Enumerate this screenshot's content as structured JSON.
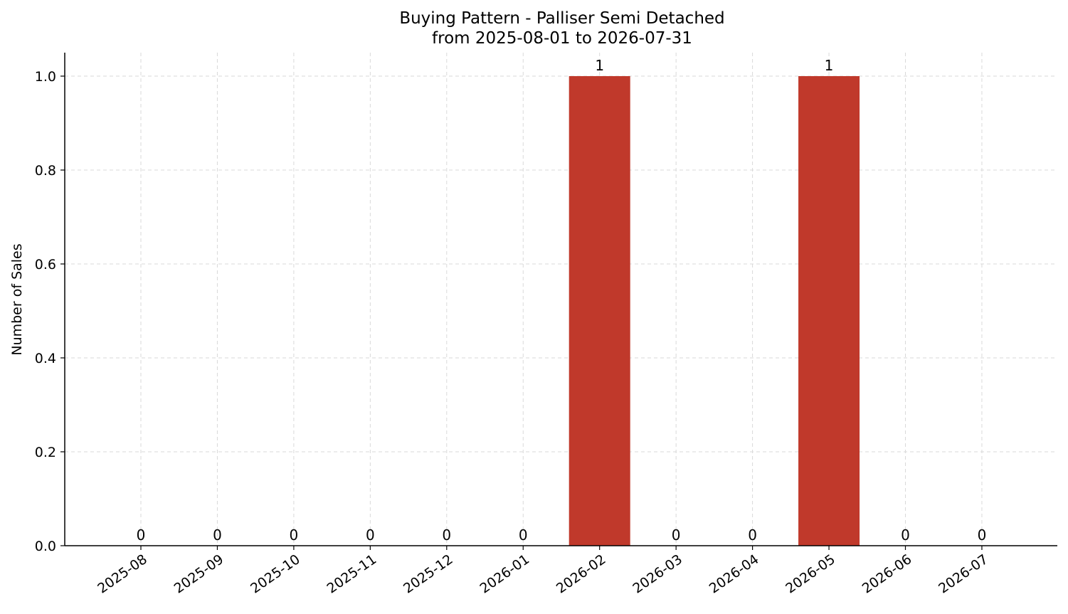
{
  "chart_data": {
    "type": "bar",
    "title_line1": "Buying Pattern - Palliser Semi Detached",
    "title_line2": "from 2025-08-01 to 2026-07-31",
    "xlabel": "",
    "ylabel": "Number of Sales",
    "categories": [
      "2025-08",
      "2025-09",
      "2025-10",
      "2025-11",
      "2025-12",
      "2026-01",
      "2026-02",
      "2026-03",
      "2026-04",
      "2026-05",
      "2026-06",
      "2026-07"
    ],
    "values": [
      0,
      0,
      0,
      0,
      0,
      0,
      1,
      0,
      0,
      1,
      0,
      0
    ],
    "data_labels": [
      "0",
      "0",
      "0",
      "0",
      "0",
      "0",
      "1",
      "0",
      "0",
      "1",
      "0",
      "0"
    ],
    "ylim": [
      0,
      1.05
    ],
    "yticks": [
      0.0,
      0.2,
      0.4,
      0.6,
      0.8,
      1.0
    ],
    "ytick_labels": [
      "0.0",
      "0.2",
      "0.4",
      "0.6",
      "0.8",
      "1.0"
    ],
    "bar_color": "#c0392b",
    "grid": true,
    "legend": "none"
  }
}
